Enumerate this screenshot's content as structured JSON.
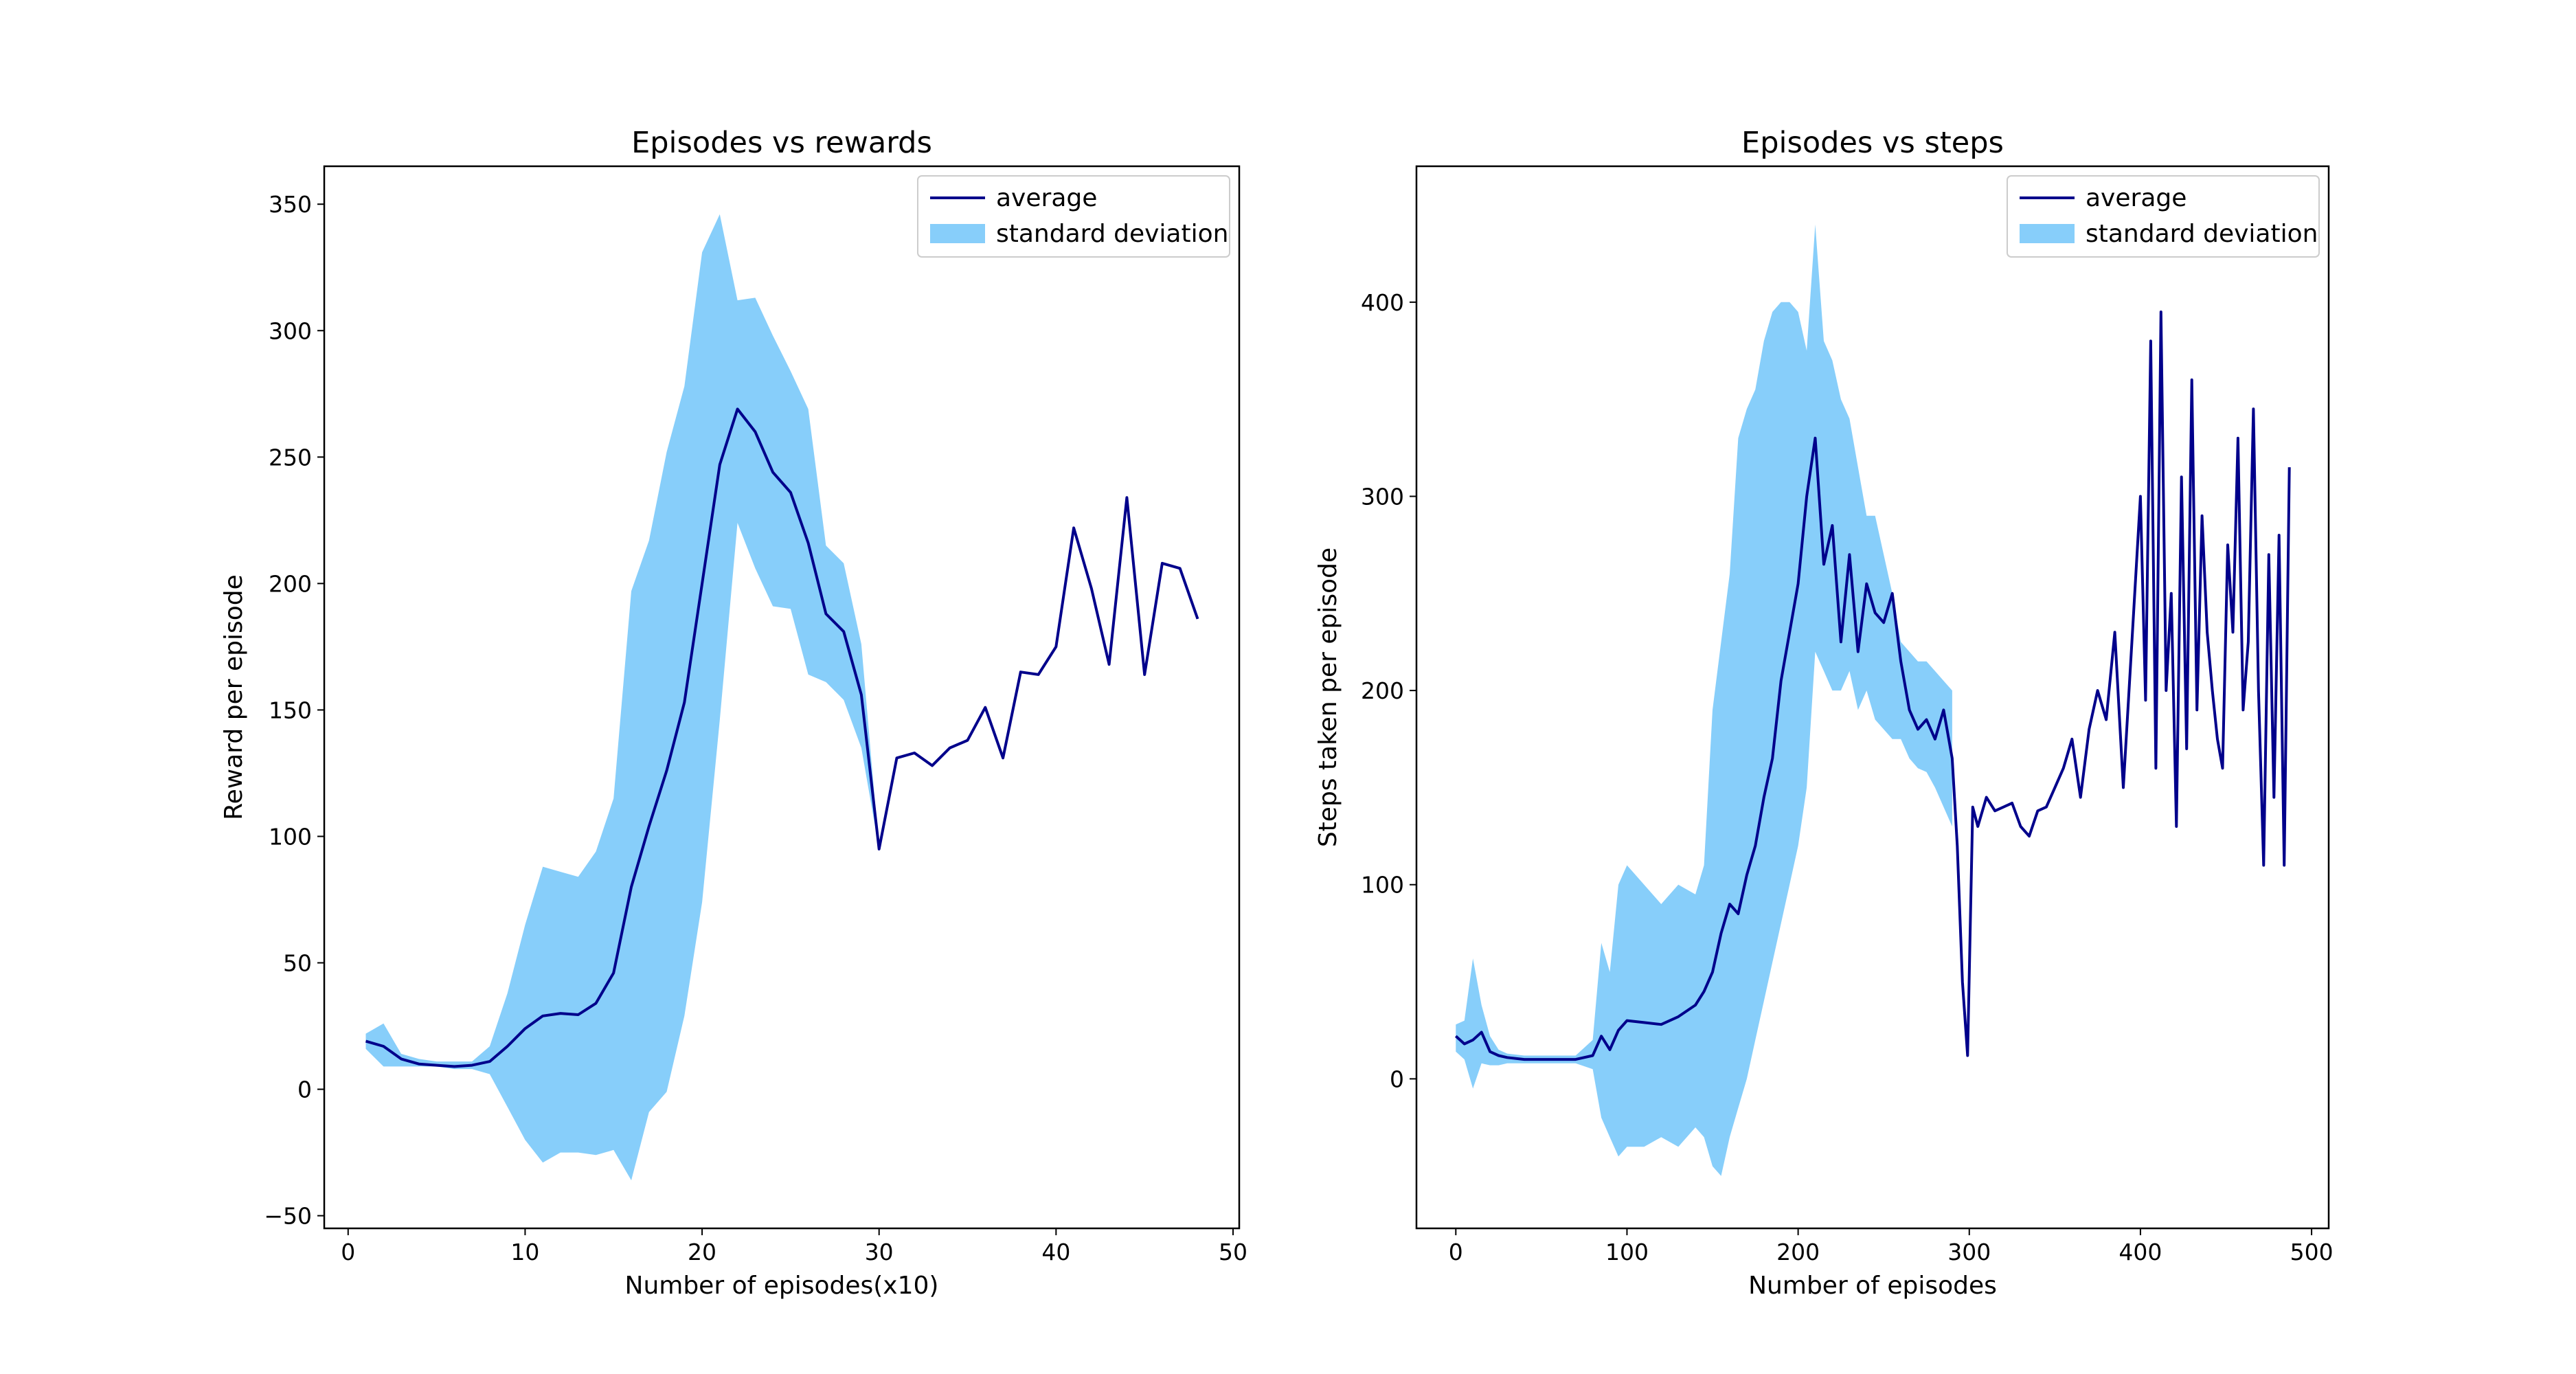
{
  "colors": {
    "line": "#00008B",
    "band": "#87CEFA",
    "axis": "#000000"
  },
  "chart_data": [
    {
      "type": "line",
      "title": "Episodes vs rewards",
      "xlabel": "Number of episodes(x10)",
      "ylabel": "Reward per episode",
      "xlim": [
        -1.35,
        50.35
      ],
      "ylim": [
        -55,
        365
      ],
      "xticks": [
        0,
        10,
        20,
        30,
        40,
        50
      ],
      "yticks": [
        -50,
        0,
        50,
        100,
        150,
        200,
        250,
        300,
        350
      ],
      "xtick_labels": [
        "0",
        "10",
        "20",
        "30",
        "40",
        "50"
      ],
      "ytick_labels": [
        "−50",
        "0",
        "50",
        "100",
        "150",
        "200",
        "250",
        "300",
        "350"
      ],
      "legend": {
        "position": "top-right",
        "line_label": "average",
        "band_label": "standard deviation"
      },
      "series": [
        {
          "name": "average",
          "x": [
            1,
            2,
            3,
            4,
            5,
            6,
            7,
            8,
            9,
            10,
            11,
            12,
            13,
            14,
            15,
            16,
            17,
            18,
            19,
            20,
            21,
            22,
            23,
            24,
            25,
            26,
            27,
            28,
            29,
            30,
            31,
            32,
            33,
            34,
            35,
            36,
            37,
            38,
            39,
            40,
            41,
            42,
            43,
            44,
            45,
            46,
            47,
            48
          ],
          "y": [
            19,
            17,
            12,
            10,
            9.5,
            9,
            9.5,
            11,
            17,
            24,
            29,
            30,
            29.5,
            34,
            46,
            80,
            104,
            126,
            153,
            200,
            247,
            269,
            260,
            244,
            236,
            216,
            188,
            181,
            156,
            95,
            131,
            133,
            128,
            135,
            138,
            151,
            131,
            165,
            164,
            175,
            222,
            198,
            168,
            234,
            164,
            208,
            206,
            186
          ]
        }
      ],
      "band": {
        "name": "standard deviation",
        "x": [
          1,
          2,
          3,
          4,
          5,
          6,
          7,
          8,
          9,
          10,
          11,
          12,
          13,
          14,
          15,
          16,
          17,
          18,
          19,
          20,
          21,
          22,
          23,
          24,
          25,
          26,
          27,
          28,
          29,
          30
        ],
        "upper": [
          22,
          26,
          14,
          12,
          11,
          11,
          11,
          17,
          38,
          65,
          88,
          86,
          84,
          94,
          115,
          197,
          217,
          252,
          278,
          331,
          346,
          312,
          313,
          298,
          284,
          269,
          215,
          208,
          176,
          95
        ],
        "lower": [
          16,
          9,
          9,
          9,
          9,
          8,
          8,
          6,
          -7,
          -20,
          -29,
          -25,
          -25,
          -26,
          -24,
          -36,
          -9,
          -1,
          29,
          74,
          146,
          224,
          206,
          191,
          190,
          164,
          161,
          154,
          135,
          95
        ]
      }
    },
    {
      "type": "line",
      "title": "Episodes vs steps",
      "xlabel": "Number of episodes",
      "ylabel": "Steps taken per episode",
      "xlim": [
        -23,
        510
      ],
      "ylim": [
        -77,
        470
      ],
      "xticks": [
        0,
        100,
        200,
        300,
        400,
        500
      ],
      "yticks": [
        0,
        100,
        200,
        300,
        400
      ],
      "xtick_labels": [
        "0",
        "100",
        "200",
        "300",
        "400",
        "500"
      ],
      "ytick_labels": [
        "0",
        "100",
        "200",
        "300",
        "400"
      ],
      "legend": {
        "position": "top-right",
        "line_label": "average",
        "band_label": "standard deviation"
      },
      "series": [
        {
          "name": "average",
          "x": [
            0,
            5,
            10,
            15,
            20,
            25,
            30,
            40,
            50,
            60,
            70,
            80,
            85,
            90,
            95,
            100,
            110,
            120,
            130,
            140,
            145,
            150,
            155,
            160,
            165,
            170,
            175,
            180,
            185,
            190,
            195,
            200,
            205,
            210,
            215,
            220,
            225,
            230,
            235,
            240,
            245,
            250,
            255,
            260,
            265,
            270,
            275,
            280,
            285,
            290,
            293,
            296,
            299,
            302,
            305,
            310,
            315,
            320,
            325,
            330,
            335,
            340,
            345,
            350,
            355,
            360,
            365,
            370,
            375,
            380,
            385,
            390,
            395,
            400,
            403,
            406,
            409,
            412,
            415,
            418,
            421,
            424,
            427,
            430,
            433,
            436,
            439,
            442,
            445,
            448,
            451,
            454,
            457,
            460,
            463,
            466,
            469,
            472,
            475,
            478,
            481,
            484,
            487
          ],
          "y": [
            22,
            18,
            20,
            24,
            14,
            12,
            11,
            10,
            10,
            10,
            10,
            12,
            22,
            15,
            25,
            30,
            29,
            28,
            32,
            38,
            45,
            55,
            75,
            90,
            85,
            105,
            120,
            145,
            165,
            205,
            230,
            255,
            300,
            330,
            265,
            285,
            225,
            270,
            220,
            255,
            240,
            235,
            250,
            215,
            190,
            180,
            185,
            175,
            190,
            165,
            120,
            50,
            12,
            140,
            130,
            145,
            138,
            140,
            142,
            130,
            125,
            138,
            140,
            150,
            160,
            175,
            145,
            180,
            200,
            185,
            230,
            150,
            225,
            300,
            195,
            380,
            160,
            395,
            200,
            250,
            130,
            310,
            170,
            360,
            190,
            290,
            230,
            200,
            175,
            160,
            275,
            230,
            330,
            190,
            225,
            345,
            200,
            110,
            270,
            145,
            280,
            110,
            315
          ]
        }
      ],
      "band": {
        "name": "standard deviation",
        "x": [
          0,
          5,
          10,
          15,
          20,
          25,
          30,
          40,
          50,
          60,
          70,
          80,
          85,
          90,
          95,
          100,
          110,
          120,
          130,
          140,
          145,
          150,
          155,
          160,
          165,
          170,
          175,
          180,
          185,
          190,
          195,
          200,
          205,
          210,
          215,
          220,
          225,
          230,
          235,
          240,
          245,
          250,
          255,
          260,
          265,
          270,
          275,
          280,
          285,
          290
        ],
        "upper": [
          28,
          30,
          62,
          38,
          22,
          15,
          13,
          12,
          12,
          12,
          12,
          20,
          70,
          55,
          100,
          110,
          100,
          90,
          100,
          95,
          110,
          190,
          225,
          260,
          330,
          345,
          355,
          380,
          395,
          400,
          400,
          395,
          375,
          440,
          380,
          370,
          350,
          340,
          315,
          290,
          290,
          270,
          250,
          225,
          220,
          215,
          215,
          210,
          205,
          200
        ],
        "lower": [
          14,
          10,
          -5,
          8,
          7,
          7,
          8,
          8,
          8,
          8,
          8,
          5,
          -20,
          -30,
          -40,
          -35,
          -35,
          -30,
          -35,
          -25,
          -30,
          -45,
          -50,
          -30,
          -15,
          0,
          20,
          40,
          60,
          80,
          100,
          120,
          150,
          220,
          210,
          200,
          200,
          210,
          190,
          200,
          185,
          180,
          175,
          175,
          165,
          160,
          158,
          150,
          140,
          130
        ]
      }
    }
  ]
}
